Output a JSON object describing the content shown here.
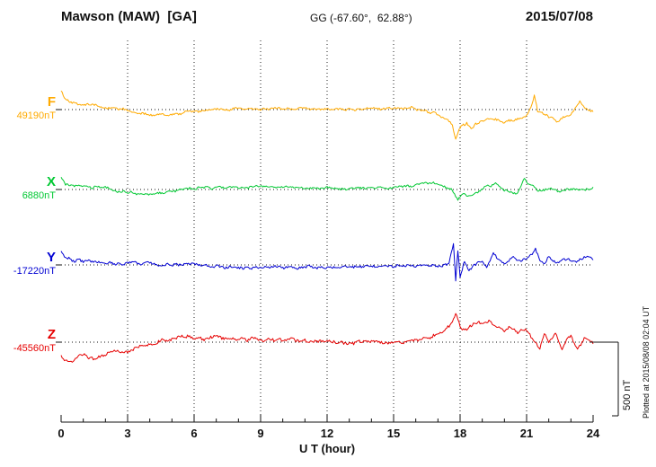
{
  "header": {
    "title": "Mawson (MAW)  [GA]",
    "gg": "GG (-67.60°,  62.88°)",
    "date": "2015/07/08"
  },
  "annotations": {
    "plotted_at": "Plotted at 2015/08/08 02:04 UT"
  },
  "chart_data": {
    "type": "line",
    "title": "Mawson (MAW) [GA] magnetogram 2015/07/08",
    "xlabel": "U T (hour)",
    "x_range": [
      0,
      24
    ],
    "x_ticks": [
      0,
      3,
      6,
      9,
      12,
      15,
      18,
      21,
      24
    ],
    "x_minor_step": 1,
    "grid": "vertical dotted lines at 3-hour marks; dotted horizontal baseline per trace",
    "scale_bar_label": "500 nT",
    "scale_bar_nT": 500,
    "units": "nT offset from baseline",
    "series": [
      {
        "name": "F",
        "color": "#FFAA00",
        "baseline_nT": 49190,
        "baseline_label": "49190nT",
        "noise_nT": 8,
        "seed": 11,
        "points": [
          [
            0,
            130
          ],
          [
            0.15,
            85
          ],
          [
            0.4,
            55
          ],
          [
            0.8,
            35
          ],
          [
            1.2,
            30
          ],
          [
            1.6,
            25
          ],
          [
            2,
            15
          ],
          [
            2.5,
            8
          ],
          [
            3,
            -5
          ],
          [
            3.5,
            -25
          ],
          [
            4,
            -37
          ],
          [
            4.5,
            -40
          ],
          [
            5,
            -30
          ],
          [
            5.5,
            -25
          ],
          [
            6,
            -12
          ],
          [
            6.5,
            -5
          ],
          [
            7,
            0
          ],
          [
            7.5,
            3
          ],
          [
            8,
            5
          ],
          [
            8.5,
            2
          ],
          [
            9,
            6
          ],
          [
            9.5,
            8
          ],
          [
            10,
            10
          ],
          [
            10.5,
            8
          ],
          [
            11,
            10
          ],
          [
            11.5,
            6
          ],
          [
            12,
            4
          ],
          [
            12.5,
            2
          ],
          [
            13,
            0
          ],
          [
            13.5,
            3
          ],
          [
            14,
            5
          ],
          [
            14.5,
            8
          ],
          [
            15,
            10
          ],
          [
            15.5,
            12
          ],
          [
            16,
            6
          ],
          [
            16.5,
            -12
          ],
          [
            17,
            -37
          ],
          [
            17.4,
            -60
          ],
          [
            17.65,
            -110
          ],
          [
            17.8,
            -200
          ],
          [
            17.95,
            -130
          ],
          [
            18.1,
            -100
          ],
          [
            18.3,
            -92
          ],
          [
            18.5,
            -140
          ],
          [
            18.7,
            -100
          ],
          [
            19,
            -80
          ],
          [
            19.3,
            -70
          ],
          [
            19.6,
            -65
          ],
          [
            20,
            -85
          ],
          [
            20.3,
            -75
          ],
          [
            20.6,
            -67
          ],
          [
            21,
            -40
          ],
          [
            21.2,
            20
          ],
          [
            21.35,
            90
          ],
          [
            21.5,
            -15
          ],
          [
            21.8,
            -35
          ],
          [
            22,
            -50
          ],
          [
            22.4,
            -80
          ],
          [
            22.7,
            -45
          ],
          [
            23,
            -30
          ],
          [
            23.4,
            60
          ],
          [
            23.6,
            10
          ],
          [
            24,
            -12
          ]
        ]
      },
      {
        "name": "X",
        "color": "#00C832",
        "baseline_nT": 6880,
        "baseline_label": "6880nT",
        "noise_nT": 8,
        "seed": 23,
        "points": [
          [
            0,
            85
          ],
          [
            0.2,
            40
          ],
          [
            0.5,
            20
          ],
          [
            1,
            15
          ],
          [
            1.5,
            18
          ],
          [
            2,
            10
          ],
          [
            2.5,
            -10
          ],
          [
            3,
            -20
          ],
          [
            3.5,
            -28
          ],
          [
            4,
            -30
          ],
          [
            4.5,
            -22
          ],
          [
            5,
            -12
          ],
          [
            5.5,
            -2
          ],
          [
            6,
            5
          ],
          [
            6.5,
            10
          ],
          [
            7,
            12
          ],
          [
            7.5,
            10
          ],
          [
            8,
            12
          ],
          [
            8.5,
            15
          ],
          [
            9,
            18
          ],
          [
            9.5,
            15
          ],
          [
            10,
            12
          ],
          [
            10.5,
            10
          ],
          [
            11,
            12
          ],
          [
            11.5,
            10
          ],
          [
            12,
            12
          ],
          [
            12.5,
            8
          ],
          [
            13,
            6
          ],
          [
            13.5,
            10
          ],
          [
            14,
            12
          ],
          [
            14.5,
            10
          ],
          [
            15,
            12
          ],
          [
            15.5,
            18
          ],
          [
            16,
            30
          ],
          [
            16.5,
            45
          ],
          [
            16.8,
            50
          ],
          [
            17,
            35
          ],
          [
            17.3,
            20
          ],
          [
            17.6,
            0
          ],
          [
            17.9,
            -67
          ],
          [
            18.1,
            -30
          ],
          [
            18.3,
            -45
          ],
          [
            18.5,
            -49
          ],
          [
            18.8,
            -20
          ],
          [
            19,
            6
          ],
          [
            19.3,
            25
          ],
          [
            19.6,
            37
          ],
          [
            20,
            -6
          ],
          [
            20.3,
            -20
          ],
          [
            20.6,
            -24
          ],
          [
            20.9,
            73
          ],
          [
            21.1,
            40
          ],
          [
            21.3,
            25
          ],
          [
            21.5,
            -12
          ],
          [
            21.8,
            0
          ],
          [
            22,
            12
          ],
          [
            22.3,
            -5
          ],
          [
            22.5,
            -18
          ],
          [
            22.8,
            -5
          ],
          [
            23,
            6
          ],
          [
            23.3,
            0
          ],
          [
            23.6,
            -6
          ],
          [
            24,
            6
          ]
        ]
      },
      {
        "name": "Y",
        "color": "#0000D2",
        "baseline_nT": -17220,
        "baseline_label": "-17220nT",
        "noise_nT": 10,
        "seed": 37,
        "points": [
          [
            0,
            105
          ],
          [
            0.2,
            50
          ],
          [
            0.5,
            32
          ],
          [
            1,
            28
          ],
          [
            1.5,
            22
          ],
          [
            2,
            15
          ],
          [
            2.5,
            12
          ],
          [
            3,
            12
          ],
          [
            3.5,
            8
          ],
          [
            4,
            10
          ],
          [
            4.5,
            6
          ],
          [
            5,
            4
          ],
          [
            5.5,
            2
          ],
          [
            6,
            0
          ],
          [
            6.5,
            -6
          ],
          [
            7,
            -12
          ],
          [
            7.5,
            -15
          ],
          [
            8,
            -18
          ],
          [
            8.5,
            -15
          ],
          [
            9,
            -12
          ],
          [
            9.5,
            -15
          ],
          [
            10,
            -18
          ],
          [
            10.5,
            -15
          ],
          [
            11,
            -12
          ],
          [
            11.5,
            -15
          ],
          [
            12,
            -18
          ],
          [
            12.5,
            -15
          ],
          [
            13,
            -12
          ],
          [
            13.5,
            -10
          ],
          [
            14,
            -8
          ],
          [
            14.5,
            -12
          ],
          [
            15,
            -10
          ],
          [
            15.5,
            -8
          ],
          [
            16,
            -5
          ],
          [
            16.5,
            -6
          ],
          [
            17,
            -4
          ],
          [
            17.3,
            0
          ],
          [
            17.5,
            10
          ],
          [
            17.7,
            140
          ],
          [
            17.8,
            -104
          ],
          [
            17.9,
            92
          ],
          [
            18,
            -79
          ],
          [
            18.2,
            30
          ],
          [
            18.4,
            -30
          ],
          [
            18.6,
            -10
          ],
          [
            18.8,
            10
          ],
          [
            19,
            30
          ],
          [
            19.2,
            -5
          ],
          [
            19.5,
            73
          ],
          [
            19.8,
            20
          ],
          [
            20,
            12
          ],
          [
            20.4,
            61
          ],
          [
            20.7,
            25
          ],
          [
            21,
            43
          ],
          [
            21.4,
            104
          ],
          [
            21.6,
            30
          ],
          [
            21.8,
            18
          ],
          [
            22,
            55
          ],
          [
            22.2,
            25
          ],
          [
            22.4,
            6
          ],
          [
            22.8,
            49
          ],
          [
            23,
            30
          ],
          [
            23.3,
            35
          ],
          [
            23.6,
            61
          ],
          [
            24,
            30
          ]
        ]
      },
      {
        "name": "Z",
        "color": "#E60000",
        "baseline_nT": -45560,
        "baseline_label": "-45560nT",
        "noise_nT": 12,
        "seed": 53,
        "points": [
          [
            0,
            -104
          ],
          [
            0.4,
            -140
          ],
          [
            0.8,
            -100
          ],
          [
            1,
            -92
          ],
          [
            1.5,
            -110
          ],
          [
            2,
            -79
          ],
          [
            2.5,
            -55
          ],
          [
            3,
            -61
          ],
          [
            3.5,
            -37
          ],
          [
            4,
            -24
          ],
          [
            4.5,
            6
          ],
          [
            5,
            24
          ],
          [
            5.5,
            37
          ],
          [
            6,
            30
          ],
          [
            6.5,
            24
          ],
          [
            7,
            43
          ],
          [
            7.5,
            24
          ],
          [
            8,
            18
          ],
          [
            8.5,
            22
          ],
          [
            9,
            12
          ],
          [
            9.5,
            20
          ],
          [
            10,
            12
          ],
          [
            10.5,
            16
          ],
          [
            11,
            6
          ],
          [
            11.5,
            10
          ],
          [
            12,
            6
          ],
          [
            12.5,
            4
          ],
          [
            13,
            0
          ],
          [
            13.5,
            4
          ],
          [
            14,
            6
          ],
          [
            14.5,
            2
          ],
          [
            15,
            0
          ],
          [
            15.5,
            6
          ],
          [
            16,
            12
          ],
          [
            16.5,
            24
          ],
          [
            17,
            49
          ],
          [
            17.3,
            79
          ],
          [
            17.6,
            116
          ],
          [
            17.8,
            200
          ],
          [
            18,
            116
          ],
          [
            18.2,
            79
          ],
          [
            18.5,
            104
          ],
          [
            18.8,
            140
          ],
          [
            19,
            134
          ],
          [
            19.3,
            152
          ],
          [
            19.6,
            110
          ],
          [
            20,
            85
          ],
          [
            20.3,
            100
          ],
          [
            20.6,
            67
          ],
          [
            21,
            92
          ],
          [
            21.3,
            24
          ],
          [
            21.6,
            -49
          ],
          [
            21.8,
            55
          ],
          [
            22,
            6
          ],
          [
            22.3,
            61
          ],
          [
            22.6,
            -37
          ],
          [
            23,
            43
          ],
          [
            23.3,
            -55
          ],
          [
            23.6,
            18
          ],
          [
            24,
            0
          ]
        ]
      }
    ]
  }
}
